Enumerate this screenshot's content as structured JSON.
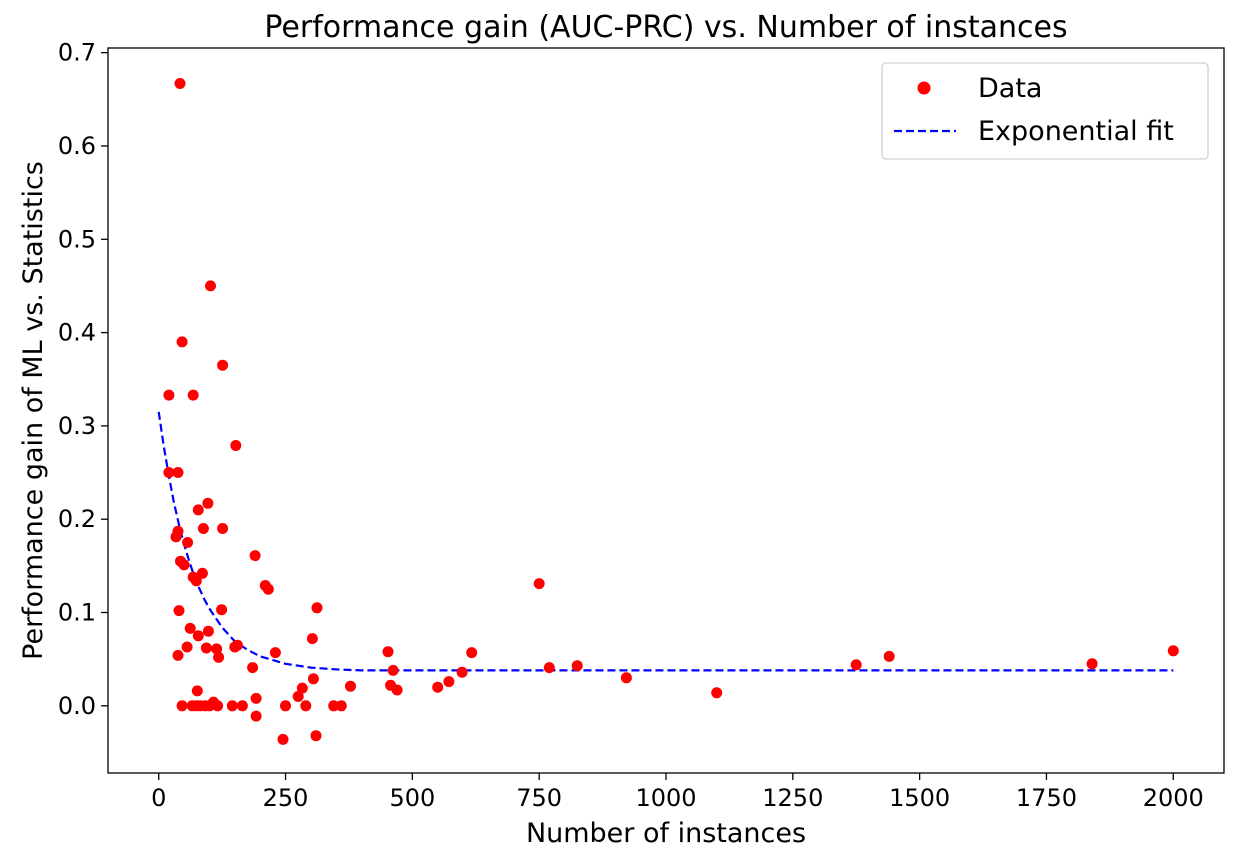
{
  "chart_data": {
    "type": "scatter",
    "title": "Performance gain (AUC-PRC) vs. Number of instances",
    "xlabel": "Number of instances",
    "ylabel": "Performance gain of ML vs. Statistics",
    "xlim": [
      -100,
      2100
    ],
    "ylim": [
      -0.072,
      0.705
    ],
    "xticks": [
      0,
      250,
      500,
      750,
      1000,
      1250,
      1500,
      1750,
      2000
    ],
    "yticks": [
      0.0,
      0.1,
      0.2,
      0.3,
      0.4,
      0.5,
      0.6,
      0.7
    ],
    "ytick_labels": [
      "0.0",
      "0.1",
      "0.2",
      "0.3",
      "0.4",
      "0.5",
      "0.6",
      "0.7"
    ],
    "grid": false,
    "legend_position": "top-right",
    "series": [
      {
        "name": "Data",
        "kind": "points",
        "color": "#ff0000",
        "points": [
          [
            42,
            0.667
          ],
          [
            102,
            0.45
          ],
          [
            46,
            0.39
          ],
          [
            126,
            0.365
          ],
          [
            20,
            0.333
          ],
          [
            68,
            0.333
          ],
          [
            152,
            0.279
          ],
          [
            20,
            0.25
          ],
          [
            38,
            0.25
          ],
          [
            97,
            0.217
          ],
          [
            78,
            0.21
          ],
          [
            88,
            0.19
          ],
          [
            126,
            0.19
          ],
          [
            38,
            0.187
          ],
          [
            34,
            0.181
          ],
          [
            57,
            0.175
          ],
          [
            190,
            0.161
          ],
          [
            43,
            0.155
          ],
          [
            50,
            0.151
          ],
          [
            86,
            0.142
          ],
          [
            68,
            0.138
          ],
          [
            74,
            0.134
          ],
          [
            210,
            0.129
          ],
          [
            216,
            0.125
          ],
          [
            312,
            0.105
          ],
          [
            124,
            0.103
          ],
          [
            40,
            0.102
          ],
          [
            750,
            0.131
          ],
          [
            62,
            0.083
          ],
          [
            98,
            0.08
          ],
          [
            78,
            0.075
          ],
          [
            303,
            0.072
          ],
          [
            155,
            0.065
          ],
          [
            150,
            0.063
          ],
          [
            56,
            0.063
          ],
          [
            94,
            0.062
          ],
          [
            114,
            0.061
          ],
          [
            230,
            0.057
          ],
          [
            617,
            0.057
          ],
          [
            452,
            0.058
          ],
          [
            1440,
            0.053
          ],
          [
            38,
            0.054
          ],
          [
            118,
            0.052
          ],
          [
            2000,
            0.059
          ],
          [
            1840,
            0.045
          ],
          [
            1375,
            0.044
          ],
          [
            825,
            0.043
          ],
          [
            185,
            0.041
          ],
          [
            770,
            0.041
          ],
          [
            462,
            0.038
          ],
          [
            598,
            0.036
          ],
          [
            305,
            0.029
          ],
          [
            922,
            0.03
          ],
          [
            572,
            0.026
          ],
          [
            457,
            0.022
          ],
          [
            378,
            0.021
          ],
          [
            550,
            0.02
          ],
          [
            283,
            0.019
          ],
          [
            470,
            0.017
          ],
          [
            76,
            0.016
          ],
          [
            1100,
            0.014
          ],
          [
            275,
            0.01
          ],
          [
            192,
            0.008
          ],
          [
            108,
            0.004
          ],
          [
            46,
            0.0
          ],
          [
            66,
            0.0
          ],
          [
            74,
            0.0
          ],
          [
            82,
            0.0
          ],
          [
            92,
            0.0
          ],
          [
            100,
            0.0
          ],
          [
            116,
            0.0
          ],
          [
            145,
            0.0
          ],
          [
            165,
            0.0
          ],
          [
            250,
            0.0
          ],
          [
            290,
            0.0
          ],
          [
            345,
            0.0
          ],
          [
            360,
            0.0
          ],
          [
            192,
            -0.011
          ],
          [
            310,
            -0.032
          ],
          [
            245,
            -0.036
          ]
        ]
      },
      {
        "name": "Exponential fit",
        "kind": "dashed-line",
        "color": "#0000ff",
        "points": [
          [
            0,
            0.315
          ],
          [
            10,
            0.278
          ],
          [
            20,
            0.246
          ],
          [
            30,
            0.218
          ],
          [
            40,
            0.194
          ],
          [
            50,
            0.173
          ],
          [
            60,
            0.155
          ],
          [
            70,
            0.139
          ],
          [
            80,
            0.126
          ],
          [
            90,
            0.114
          ],
          [
            100,
            0.104
          ],
          [
            125,
            0.084
          ],
          [
            150,
            0.069
          ],
          [
            175,
            0.06
          ],
          [
            200,
            0.053
          ],
          [
            250,
            0.045
          ],
          [
            300,
            0.041
          ],
          [
            350,
            0.039
          ],
          [
            400,
            0.038
          ],
          [
            500,
            0.038
          ],
          [
            750,
            0.038
          ],
          [
            1000,
            0.038
          ],
          [
            1500,
            0.038
          ],
          [
            2000,
            0.038
          ]
        ]
      }
    ]
  }
}
